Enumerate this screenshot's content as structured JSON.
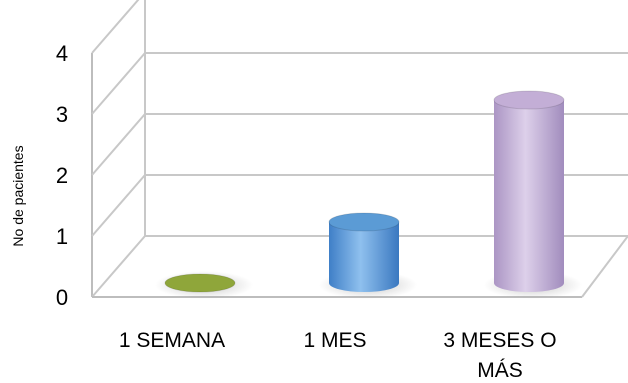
{
  "chart_data": {
    "type": "bar",
    "style": "3d-cylinder",
    "categories": [
      "1 SEMANA",
      "1 MES",
      "3 MESES O MÁS"
    ],
    "categories_lines": [
      [
        "1 SEMANA"
      ],
      [
        "1 MES"
      ],
      [
        "3 MESES O",
        "MÁS"
      ]
    ],
    "series": [
      {
        "values": [
          0,
          1,
          3
        ],
        "colors": [
          "#8fa63a",
          "#5b9bd5",
          "#c3aed6"
        ]
      }
    ],
    "yticks": [
      0,
      1,
      2,
      3,
      4
    ],
    "ylim": [
      0,
      4
    ],
    "ylabel": "No de pacientes",
    "xlabel": "",
    "grid": true,
    "legend": "none"
  }
}
